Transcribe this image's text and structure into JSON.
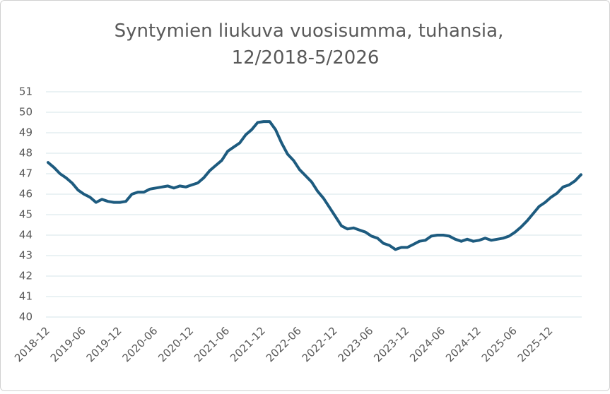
{
  "chart_data": {
    "type": "line",
    "title": [
      "Syntymien liukuva vuosisumma, tuhansia,",
      "12/2018-5/2026"
    ],
    "categories": [
      "2018-12",
      null,
      null,
      null,
      null,
      null,
      "2019-06",
      null,
      null,
      null,
      null,
      null,
      "2019-12",
      null,
      null,
      null,
      null,
      null,
      "2020-06",
      null,
      null,
      null,
      null,
      null,
      "2020-12",
      null,
      null,
      null,
      null,
      null,
      "2021-06",
      null,
      null,
      null,
      null,
      null,
      "2021-12",
      null,
      null,
      null,
      null,
      null,
      "2022-06",
      null,
      null,
      null,
      null,
      null,
      "2022-12",
      null,
      null,
      null,
      null,
      null,
      "2023-06",
      null,
      null,
      null,
      null,
      null,
      "2023-12",
      null,
      null,
      null,
      null,
      null,
      "2024-06",
      null,
      null,
      null,
      null,
      null,
      "2024-12",
      null,
      null,
      null,
      null,
      null,
      "2025-06",
      null,
      null,
      null,
      null,
      null,
      "2025-12",
      null,
      null,
      null,
      null,
      null
    ],
    "series": [
      {
        "color": "#1d5b7f",
        "values": [
          47.55,
          47.3,
          47.0,
          46.8,
          46.55,
          46.2,
          46.0,
          45.85,
          45.6,
          45.75,
          45.65,
          45.6,
          45.6,
          45.65,
          46.0,
          46.1,
          46.1,
          46.25,
          46.3,
          46.35,
          46.4,
          46.3,
          46.4,
          46.35,
          46.45,
          46.55,
          46.8,
          47.15,
          47.4,
          47.65,
          48.1,
          48.3,
          48.5,
          48.9,
          49.15,
          49.5,
          49.55,
          49.55,
          49.15,
          48.5,
          47.95,
          47.65,
          47.2,
          46.9,
          46.6,
          46.15,
          45.8,
          45.35,
          44.9,
          44.45,
          44.3,
          44.35,
          44.25,
          44.15,
          43.95,
          43.85,
          43.6,
          43.5,
          43.3,
          43.4,
          43.4,
          43.55,
          43.7,
          43.75,
          43.95,
          44.0,
          44.0,
          43.95,
          43.8,
          43.7,
          43.8,
          43.7,
          43.75,
          43.85,
          43.75,
          43.8,
          43.85,
          43.95,
          44.15,
          44.4,
          44.7,
          45.05,
          45.4,
          45.6,
          45.85,
          46.05,
          46.35,
          46.45,
          46.65,
          46.95
        ]
      }
    ],
    "ylim": [
      40,
      51
    ],
    "yticks": [
      40,
      41,
      42,
      43,
      44,
      45,
      46,
      47,
      48,
      49,
      50,
      51
    ],
    "grid": true
  }
}
